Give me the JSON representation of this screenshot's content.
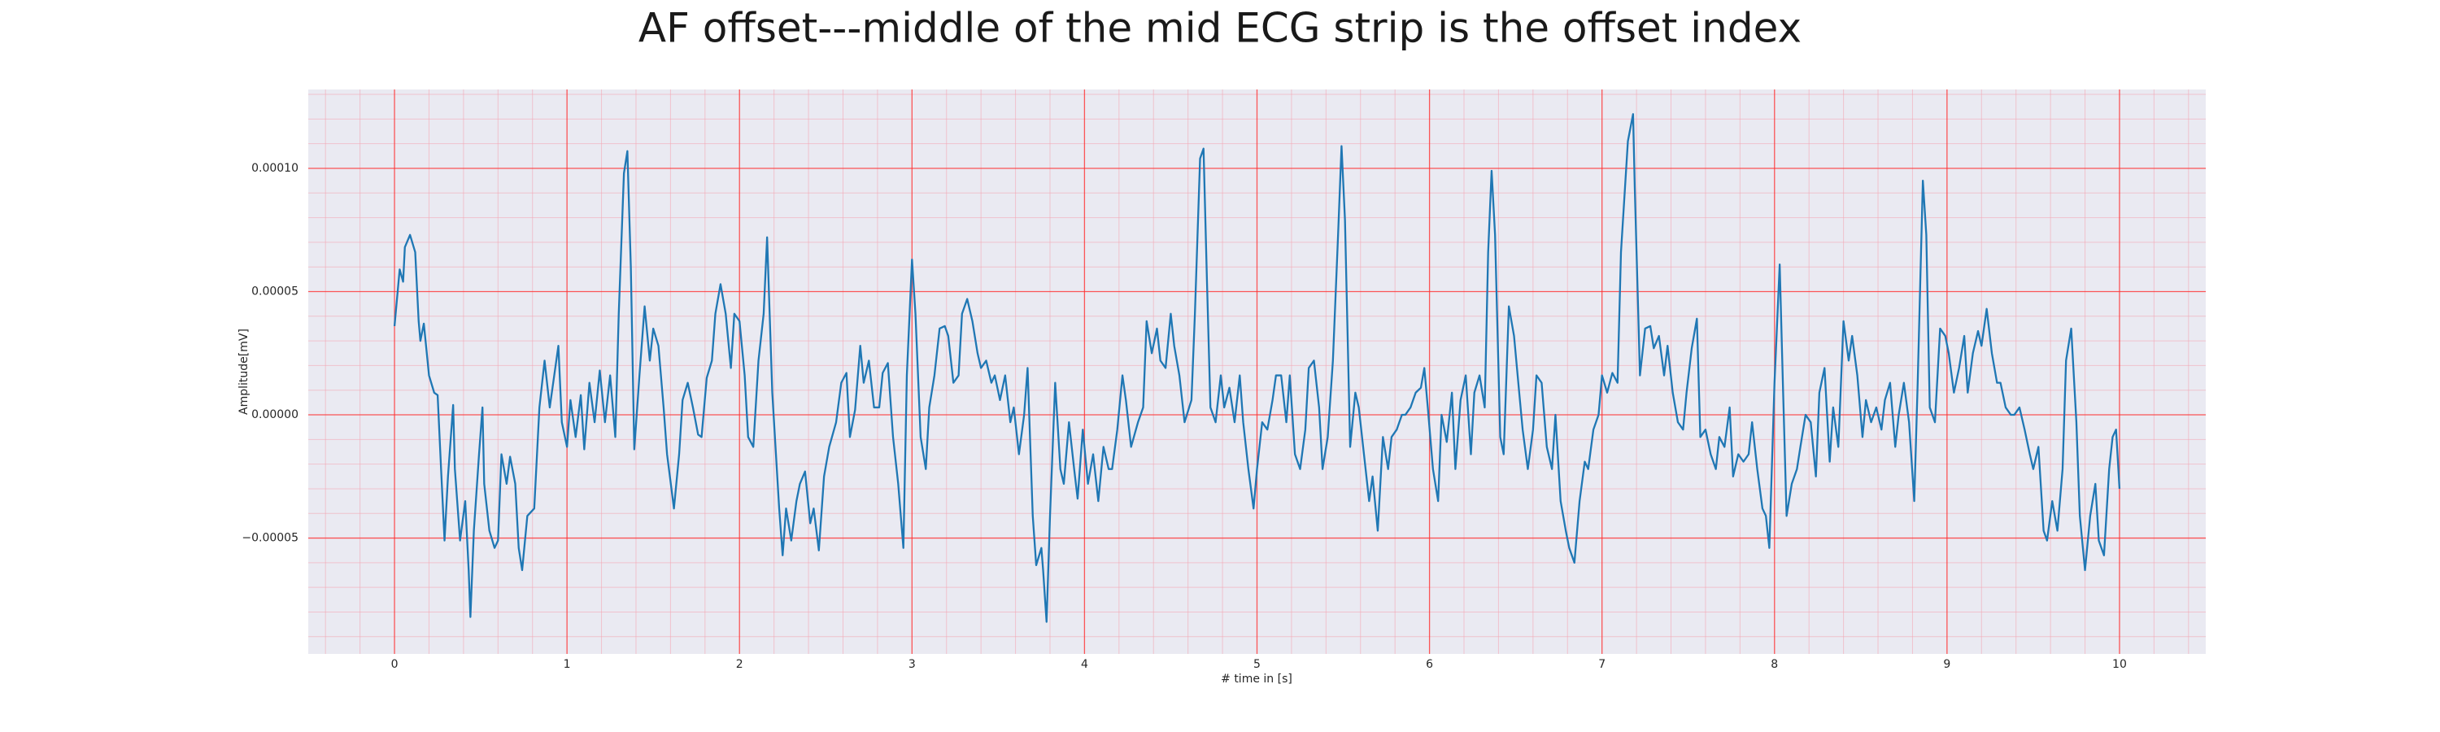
{
  "chart_data": {
    "type": "line",
    "title": "AF offset---middle of the mid ECG strip is the offset index",
    "xlabel": "# time in [s]",
    "ylabel": "Amplitude[mV]",
    "color": "#1f77b4",
    "grid": true,
    "minor_grid": true,
    "xlim": [
      -0.5,
      10.5
    ],
    "xticks": [
      0,
      1,
      2,
      3,
      4,
      5,
      6,
      7,
      8,
      9,
      10
    ],
    "ylim": [
      -9.7e-05,
      0.000132
    ],
    "yticks": [
      {
        "value": -5e-05,
        "label": "−0.00005"
      },
      {
        "value": 0,
        "label": "0.00000"
      },
      {
        "value": 5e-05,
        "label": "0.00005"
      },
      {
        "value": 0.0001,
        "label": "0.00010"
      }
    ],
    "x": [
      0,
      0.03,
      0.05,
      0.06,
      0.09,
      0.12,
      0.14,
      0.15,
      0.17,
      0.2,
      0.23,
      0.25,
      0.27,
      0.29,
      0.31,
      0.34,
      0.35,
      0.38,
      0.41,
      0.43,
      0.44,
      0.46,
      0.49,
      0.51,
      0.52,
      0.55,
      0.58,
      0.6,
      0.62,
      0.65,
      0.67,
      0.7,
      0.72,
      0.74,
      0.77,
      0.81,
      0.84,
      0.87,
      0.9,
      0.92,
      0.95,
      0.97,
      1.0,
      1.02,
      1.05,
      1.08,
      1.1,
      1.13,
      1.16,
      1.19,
      1.22,
      1.25,
      1.28,
      1.3,
      1.33,
      1.35,
      1.37,
      1.39,
      1.42,
      1.45,
      1.48,
      1.5,
      1.53,
      1.56,
      1.58,
      1.62,
      1.65,
      1.67,
      1.7,
      1.73,
      1.76,
      1.78,
      1.81,
      1.84,
      1.86,
      1.89,
      1.92,
      1.95,
      1.97,
      2.0,
      2.03,
      2.05,
      2.08,
      2.11,
      2.14,
      2.16,
      2.19,
      2.23,
      2.25,
      2.27,
      2.3,
      2.33,
      2.35,
      2.38,
      2.41,
      2.43,
      2.46,
      2.49,
      2.52,
      2.56,
      2.59,
      2.62,
      2.64,
      2.67,
      2.7,
      2.72,
      2.75,
      2.78,
      2.81,
      2.83,
      2.86,
      2.89,
      2.92,
      2.95,
      2.97,
      3.0,
      3.02,
      3.05,
      3.08,
      3.1,
      3.13,
      3.16,
      3.19,
      3.21,
      3.24,
      3.27,
      3.29,
      3.32,
      3.35,
      3.38,
      3.4,
      3.43,
      3.46,
      3.48,
      3.51,
      3.54,
      3.57,
      3.59,
      3.62,
      3.65,
      3.67,
      3.7,
      3.72,
      3.75,
      3.76,
      3.78,
      3.8,
      3.83,
      3.86,
      3.88,
      3.91,
      3.94,
      3.96,
      3.99,
      4.02,
      4.05,
      4.08,
      4.11,
      4.14,
      4.16,
      4.19,
      4.22,
      4.24,
      4.27,
      4.31,
      4.34,
      4.36,
      4.39,
      4.42,
      4.44,
      4.47,
      4.5,
      4.52,
      4.55,
      4.58,
      4.62,
      4.64,
      4.67,
      4.69,
      4.71,
      4.73,
      4.76,
      4.79,
      4.81,
      4.84,
      4.87,
      4.9,
      4.92,
      4.95,
      4.98,
      5.0,
      5.03,
      5.06,
      5.09,
      5.11,
      5.14,
      5.17,
      5.19,
      5.22,
      5.25,
      5.28,
      5.3,
      5.33,
      5.36,
      5.38,
      5.41,
      5.44,
      5.47,
      5.49,
      5.51,
      5.54,
      5.57,
      5.59,
      5.62,
      5.65,
      5.67,
      5.7,
      5.73,
      5.76,
      5.78,
      5.81,
      5.84,
      5.86,
      5.89,
      5.92,
      5.95,
      5.97,
      5.99,
      6.02,
      6.05,
      6.07,
      6.1,
      6.13,
      6.15,
      6.18,
      6.21,
      6.24,
      6.26,
      6.29,
      6.32,
      6.34,
      6.36,
      6.38,
      6.41,
      6.43,
      6.46,
      6.49,
      6.52,
      6.54,
      6.57,
      6.6,
      6.62,
      6.65,
      6.68,
      6.71,
      6.73,
      6.76,
      6.79,
      6.81,
      6.84,
      6.87,
      6.9,
      6.92,
      6.95,
      6.98,
      7.0,
      7.03,
      7.06,
      7.09,
      7.11,
      7.15,
      7.18,
      7.19,
      7.22,
      7.25,
      7.28,
      7.3,
      7.33,
      7.36,
      7.38,
      7.41,
      7.44,
      7.47,
      7.49,
      7.52,
      7.55,
      7.57,
      7.6,
      7.63,
      7.66,
      7.68,
      7.71,
      7.74,
      7.76,
      7.79,
      7.82,
      7.85,
      7.87,
      7.9,
      7.93,
      7.95,
      7.97,
      8.0,
      8.03,
      8.05,
      8.07,
      8.1,
      8.13,
      8.15,
      8.18,
      8.21,
      8.24,
      8.26,
      8.29,
      8.32,
      8.34,
      8.37,
      8.4,
      8.43,
      8.45,
      8.48,
      8.51,
      8.53,
      8.56,
      8.59,
      8.62,
      8.64,
      8.67,
      8.7,
      8.72,
      8.75,
      8.78,
      8.81,
      8.83,
      8.86,
      8.88,
      8.9,
      8.93,
      8.96,
      8.99,
      9.01,
      9.04,
      9.07,
      9.1,
      9.12,
      9.15,
      9.18,
      9.2,
      9.23,
      9.26,
      9.29,
      9.31,
      9.34,
      9.37,
      9.39,
      9.42,
      9.45,
      9.48,
      9.5,
      9.53,
      9.56,
      9.58,
      9.61,
      9.64,
      9.67,
      9.69,
      9.72,
      9.75,
      9.77,
      9.8,
      9.83,
      9.86,
      9.88,
      9.91,
      9.94,
      9.96,
      9.98,
      10.0
    ],
    "values": [
      3.6e-05,
      5.9e-05,
      5.4e-05,
      6.8e-05,
      7.3e-05,
      6.6e-05,
      3.8e-05,
      3e-05,
      3.7e-05,
      1.6e-05,
      9e-06,
      8e-06,
      -2.2e-05,
      -5.1e-05,
      -2.5e-05,
      4e-06,
      -2.2e-05,
      -5.1e-05,
      -3.5e-05,
      -6.3e-05,
      -8.2e-05,
      -4.7e-05,
      -1.6e-05,
      3e-06,
      -2.8e-05,
      -4.7e-05,
      -5.4e-05,
      -5.1e-05,
      -1.6e-05,
      -2.8e-05,
      -1.7e-05,
      -2.8e-05,
      -5.4e-05,
      -6.3e-05,
      -4.1e-05,
      -3.8e-05,
      3e-06,
      2.2e-05,
      3e-06,
      1.3e-05,
      2.8e-05,
      -3e-06,
      -1.3e-05,
      6e-06,
      -9e-06,
      8e-06,
      -1.4e-05,
      1.3e-05,
      -3e-06,
      1.8e-05,
      -3e-06,
      1.6e-05,
      -9e-06,
      4.1e-05,
      9.8e-05,
      0.000107,
      6e-05,
      -1.4e-05,
      1.6e-05,
      4.4e-05,
      2.2e-05,
      3.5e-05,
      2.8e-05,
      3e-06,
      -1.6e-05,
      -3.8e-05,
      -1.6e-05,
      6e-06,
      1.3e-05,
      3e-06,
      -8e-06,
      -9e-06,
      1.5e-05,
      2.2e-05,
      4.1e-05,
      5.3e-05,
      4.1e-05,
      1.9e-05,
      4.1e-05,
      3.8e-05,
      1.6e-05,
      -9e-06,
      -1.3e-05,
      2.2e-05,
      4.1e-05,
      7.2e-05,
      9e-06,
      -3.8e-05,
      -5.7e-05,
      -3.8e-05,
      -5.1e-05,
      -3.5e-05,
      -2.8e-05,
      -2.3e-05,
      -4.4e-05,
      -3.8e-05,
      -5.5e-05,
      -2.5e-05,
      -1.3e-05,
      -3e-06,
      1.3e-05,
      1.7e-05,
      -9e-06,
      2e-06,
      2.8e-05,
      1.3e-05,
      2.2e-05,
      3e-06,
      3e-06,
      1.7e-05,
      2.1e-05,
      -9e-06,
      -2.8e-05,
      -5.4e-05,
      1.6e-05,
      6.3e-05,
      4.1e-05,
      -9e-06,
      -2.2e-05,
      3e-06,
      1.6e-05,
      3.5e-05,
      3.6e-05,
      3.2e-05,
      1.3e-05,
      1.6e-05,
      4.1e-05,
      4.7e-05,
      3.8e-05,
      2.5e-05,
      1.9e-05,
      2.2e-05,
      1.3e-05,
      1.6e-05,
      6e-06,
      1.6e-05,
      -3e-06,
      3e-06,
      -1.6e-05,
      0,
      1.9e-05,
      -4.1e-05,
      -6.1e-05,
      -5.4e-05,
      -6.3e-05,
      -8.4e-05,
      -4.1e-05,
      1.3e-05,
      -2.2e-05,
      -2.8e-05,
      -3e-06,
      -2.2e-05,
      -3.4e-05,
      -6e-06,
      -2.8e-05,
      -1.6e-05,
      -3.5e-05,
      -1.3e-05,
      -2.2e-05,
      -2.2e-05,
      -6e-06,
      1.6e-05,
      6e-06,
      -1.3e-05,
      -3e-06,
      3e-06,
      3.8e-05,
      2.5e-05,
      3.5e-05,
      2.2e-05,
      1.9e-05,
      4.1e-05,
      2.8e-05,
      1.6e-05,
      -3e-06,
      6e-06,
      4.1e-05,
      0.000104,
      0.000108,
      5.4e-05,
      3e-06,
      -3e-06,
      1.6e-05,
      3e-06,
      1.1e-05,
      -3e-06,
      1.6e-05,
      -3e-06,
      -2.2e-05,
      -3.8e-05,
      -2.2e-05,
      -3e-06,
      -6e-06,
      6e-06,
      1.6e-05,
      1.6e-05,
      -3e-06,
      1.6e-05,
      -1.6e-05,
      -2.2e-05,
      -6e-06,
      1.9e-05,
      2.2e-05,
      3e-06,
      -2.2e-05,
      -9e-06,
      2.2e-05,
      7.3e-05,
      0.000109,
      7.9e-05,
      -1.3e-05,
      9e-06,
      3e-06,
      -1.6e-05,
      -3.5e-05,
      -2.5e-05,
      -4.7e-05,
      -9e-06,
      -2.2e-05,
      -9e-06,
      -6e-06,
      0,
      0,
      3e-06,
      9e-06,
      1.1e-05,
      1.9e-05,
      3e-06,
      -2.2e-05,
      -3.5e-05,
      0,
      -1.1e-05,
      9e-06,
      -2.2e-05,
      6e-06,
      1.6e-05,
      -1.6e-05,
      9e-06,
      1.6e-05,
      3e-06,
      6.6e-05,
      9.9e-05,
      7.3e-05,
      -9e-06,
      -1.6e-05,
      4.4e-05,
      3.2e-05,
      9e-06,
      -6e-06,
      -2.2e-05,
      -6e-06,
      1.6e-05,
      1.3e-05,
      -1.3e-05,
      -2.2e-05,
      0,
      -3.5e-05,
      -4.7e-05,
      -5.4e-05,
      -6e-05,
      -3.5e-05,
      -1.9e-05,
      -2.2e-05,
      -6e-06,
      0,
      1.6e-05,
      9e-06,
      1.7e-05,
      1.3e-05,
      6.6e-05,
      0.000111,
      0.000122,
      9.2e-05,
      1.6e-05,
      3.5e-05,
      3.6e-05,
      2.7e-05,
      3.2e-05,
      1.6e-05,
      2.8e-05,
      9e-06,
      -3e-06,
      -6e-06,
      9e-06,
      2.7e-05,
      3.9e-05,
      -9e-06,
      -6e-06,
      -1.6e-05,
      -2.2e-05,
      -9e-06,
      -1.3e-05,
      3e-06,
      -2.5e-05,
      -1.6e-05,
      -1.9e-05,
      -1.6e-05,
      -3e-06,
      -2.2e-05,
      -3.8e-05,
      -4.1e-05,
      -5.4e-05,
      1.3e-05,
      6.1e-05,
      9e-06,
      -4.1e-05,
      -2.8e-05,
      -2.2e-05,
      -1.3e-05,
      0,
      -3e-06,
      -2.5e-05,
      9e-06,
      1.9e-05,
      -1.9e-05,
      3e-06,
      -1.3e-05,
      3.8e-05,
      2.2e-05,
      3.2e-05,
      1.6e-05,
      -9e-06,
      6e-06,
      -3e-06,
      3e-06,
      -6e-06,
      6e-06,
      1.3e-05,
      -1.3e-05,
      0,
      1.3e-05,
      -3e-06,
      -3.5e-05,
      1.3e-05,
      9.5e-05,
      7.3e-05,
      3e-06,
      -3e-06,
      3.5e-05,
      3.2e-05,
      2.5e-05,
      9e-06,
      1.9e-05,
      3.2e-05,
      9e-06,
      2.5e-05,
      3.4e-05,
      2.8e-05,
      4.3e-05,
      2.5e-05,
      1.3e-05,
      1.3e-05,
      3e-06,
      0,
      0,
      3e-06,
      -6e-06,
      -1.6e-05,
      -2.2e-05,
      -1.3e-05,
      -4.7e-05,
      -5.1e-05,
      -3.5e-05,
      -4.7e-05,
      -2.2e-05,
      2.2e-05,
      3.5e-05,
      -3e-06,
      -4.1e-05,
      -6.3e-05,
      -4.1e-05,
      -2.8e-05,
      -5.1e-05,
      -5.7e-05,
      -2.2e-05,
      -9e-06,
      -6e-06,
      -3e-05
    ]
  }
}
